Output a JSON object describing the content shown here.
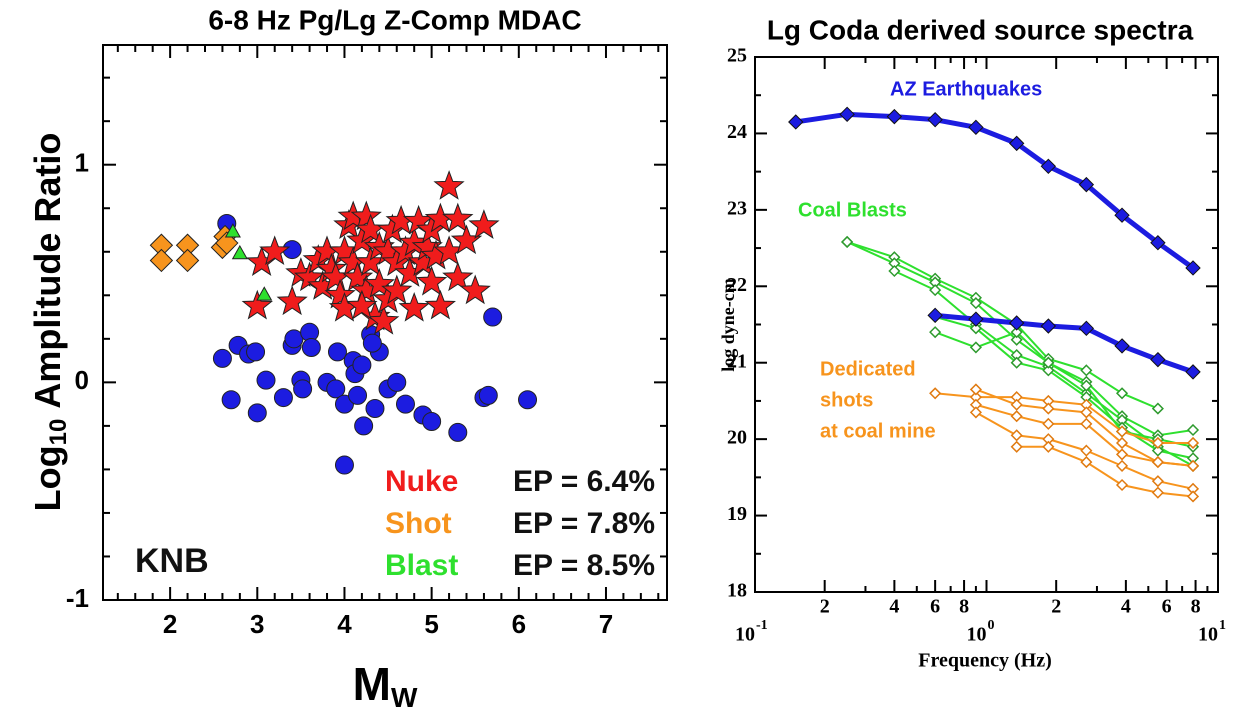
{
  "chart_data": [
    {
      "type": "scatter",
      "title": "6-8 Hz Pg/Lg Z-Comp MDAC",
      "ylabel": [
        "Log",
        "10",
        "Amplitude Ratio"
      ],
      "xlabel": [
        "M",
        "W"
      ],
      "xlim": [
        1.23,
        7.7
      ],
      "ylim": [
        -1,
        1.55
      ],
      "xticks": [
        2,
        3,
        4,
        5,
        6,
        7
      ],
      "yticks": [
        -1,
        0,
        1
      ],
      "xminor": [
        1.4,
        1.6,
        1.8,
        2.2,
        2.4,
        2.6,
        2.8,
        3.2,
        3.4,
        3.6,
        3.8,
        4.2,
        4.4,
        4.6,
        4.8,
        5.2,
        5.4,
        5.6,
        5.8,
        6.2,
        6.4,
        6.6,
        6.8,
        7.2,
        7.4,
        7.6
      ],
      "yminor": [
        -0.8,
        -0.6,
        -0.4,
        -0.2,
        0.2,
        0.4,
        0.6,
        0.8,
        1.2,
        1.4
      ],
      "legend": "lower right",
      "annotations": [
        {
          "text": "KNB",
          "color": "#111111"
        }
      ],
      "series": [
        {
          "color": "#1c1ce0",
          "marker": "circle",
          "x": [
            2.65,
            3.4,
            2.6,
            2.7,
            2.78,
            2.9,
            2.98,
            3.0,
            3.1,
            3.3,
            3.4,
            3.42,
            3.5,
            3.52,
            3.6,
            3.62,
            3.8,
            3.9,
            3.92,
            4.0,
            4.0,
            4.1,
            4.12,
            4.15,
            4.2,
            4.22,
            4.3,
            4.35,
            4.4,
            4.5,
            4.6,
            4.7,
            4.9,
            5.0,
            5.3,
            5.6,
            5.65,
            5.7,
            6.1,
            4.32
          ],
          "values": [
            0.73,
            0.61,
            0.11,
            -0.08,
            0.17,
            0.13,
            0.14,
            -0.14,
            0.01,
            -0.07,
            0.17,
            0.2,
            0.01,
            -0.03,
            0.23,
            0.16,
            0.0,
            -0.03,
            0.14,
            -0.1,
            -0.38,
            0.1,
            0.04,
            -0.06,
            0.08,
            -0.2,
            0.22,
            -0.12,
            0.14,
            -0.03,
            0.0,
            -0.1,
            -0.15,
            -0.18,
            -0.23,
            -0.07,
            -0.06,
            0.3,
            -0.08,
            0.18
          ]
        },
        {
          "name": "Nuke",
          "ep": "EP = 6.4%",
          "color": "#f01c1c",
          "marker": "star",
          "x": [
            3.0,
            3.05,
            3.2,
            3.4,
            3.5,
            3.6,
            3.7,
            3.75,
            3.8,
            3.85,
            3.9,
            3.95,
            4.0,
            4.0,
            4.05,
            4.1,
            4.1,
            4.15,
            4.2,
            4.25,
            4.25,
            4.3,
            4.3,
            4.35,
            4.4,
            4.4,
            4.45,
            4.5,
            4.5,
            4.55,
            4.6,
            4.6,
            4.65,
            4.7,
            4.75,
            4.8,
            4.8,
            4.85,
            4.9,
            4.95,
            5.0,
            5.0,
            5.05,
            5.1,
            5.2,
            5.2,
            5.3,
            5.3,
            5.4,
            5.5,
            5.6,
            5.1,
            4.2
          ],
          "values": [
            0.35,
            0.55,
            0.6,
            0.37,
            0.5,
            0.48,
            0.56,
            0.44,
            0.6,
            0.52,
            0.48,
            0.4,
            0.34,
            0.6,
            0.72,
            0.76,
            0.55,
            0.48,
            0.65,
            0.42,
            0.76,
            0.7,
            0.55,
            0.3,
            0.62,
            0.45,
            0.28,
            0.6,
            0.38,
            0.7,
            0.55,
            0.42,
            0.74,
            0.6,
            0.5,
            0.64,
            0.34,
            0.74,
            0.55,
            0.62,
            0.7,
            0.46,
            0.58,
            0.75,
            0.9,
            0.6,
            0.48,
            0.75,
            0.65,
            0.42,
            0.72,
            0.35,
            0.35
          ]
        },
        {
          "name": "Shot",
          "ep": "EP = 7.8%",
          "color": "#f7941d",
          "marker": "diamond",
          "x": [
            1.9,
            1.9,
            2.2,
            2.2,
            2.6,
            2.63,
            2.65
          ],
          "values": [
            0.63,
            0.56,
            0.63,
            0.56,
            0.62,
            0.67,
            0.64
          ]
        },
        {
          "name": "Blast",
          "ep": "EP = 8.5%",
          "color": "#2ee02e",
          "marker": "triangle",
          "x": [
            2.72,
            2.8,
            3.08
          ],
          "values": [
            0.69,
            0.59,
            0.4
          ]
        }
      ]
    },
    {
      "type": "line",
      "title": "Lg Coda derived source spectra",
      "ylabel": "log dyne-cm",
      "xlabel": "Frequency (Hz)",
      "xscale": "log",
      "xlim": [
        0.1,
        10
      ],
      "ylim": [
        18,
        25
      ],
      "xticks": [
        {
          "value": 0.1,
          "label": "10",
          "sup": "-1"
        },
        {
          "value": 0.2,
          "label": "2"
        },
        {
          "value": 0.4,
          "label": "4"
        },
        {
          "value": 0.6,
          "label": "6"
        },
        {
          "value": 0.8,
          "label": "8"
        },
        {
          "value": 1,
          "label": "10",
          "sup": "0"
        },
        2,
        4,
        6,
        8,
        {
          "value": 10,
          "label": "10",
          "sup": "1"
        }
      ],
      "yticks": [
        18,
        19,
        20,
        21,
        22,
        23,
        24,
        25
      ],
      "xminor": [
        0.3,
        0.5,
        0.7,
        0.9,
        3,
        5,
        7,
        9
      ],
      "yminor": [
        18.5,
        19.5,
        20.5,
        21.5,
        22.5,
        23.5,
        24.5
      ],
      "annotations": [
        {
          "text": "AZ Earthquakes",
          "color": "#1c1ce0"
        },
        {
          "text": "Coal Blasts",
          "color": "#2ee02e"
        },
        {
          "text": "Dedicated",
          "color": "#f7941d"
        },
        {
          "text": "shots",
          "color": "#f7941d"
        },
        {
          "text": "at coal mine",
          "color": "#f7941d"
        }
      ],
      "x": [
        0.15,
        0.25,
        0.4,
        0.6,
        0.9,
        1.35,
        1.85,
        2.7,
        3.85,
        5.5,
        7.8
      ],
      "series": [
        {
          "color": "#2e9a2e",
          "filled": false,
          "line_color": "#2ee02e",
          "line_width": 2,
          "values": [
            null,
            22.58,
            22.38,
            22.1,
            21.85,
            21.5,
            21.05,
            20.9,
            20.6,
            20.4,
            null
          ]
        },
        {
          "color": "#2e9a2e",
          "filled": false,
          "line_color": "#2ee02e",
          "line_width": 2,
          "values": [
            null,
            22.58,
            22.3,
            22.05,
            21.78,
            21.3,
            21.0,
            20.75,
            20.3,
            20.05,
            20.12
          ]
        },
        {
          "color": "#2e9a2e",
          "filled": false,
          "line_color": "#2ee02e",
          "line_width": 2,
          "values": [
            null,
            null,
            22.2,
            21.95,
            21.5,
            21.1,
            20.95,
            20.6,
            20.25,
            19.9,
            19.65
          ]
        },
        {
          "color": "#2e9a2e",
          "filled": false,
          "line_color": "#2ee02e",
          "line_width": 2,
          "values": [
            null,
            null,
            null,
            21.6,
            21.45,
            21.0,
            20.9,
            20.55,
            20.15,
            19.85,
            19.75
          ]
        },
        {
          "color": "#2e9a2e",
          "filled": false,
          "line_color": "#2ee02e",
          "line_width": 2,
          "values": [
            null,
            null,
            null,
            21.4,
            21.2,
            21.4,
            21.0,
            20.7,
            20.1,
            20.0,
            19.9
          ]
        },
        {
          "color": "#e07a10",
          "filled": false,
          "line_color": "#f7941d",
          "line_width": 2,
          "values": [
            null,
            null,
            null,
            20.6,
            20.55,
            20.55,
            20.5,
            20.45,
            20.1,
            19.95,
            19.95
          ]
        },
        {
          "color": "#e07a10",
          "filled": false,
          "line_color": "#f7941d",
          "line_width": 2,
          "values": [
            null,
            null,
            null,
            null,
            20.65,
            20.45,
            20.4,
            20.35,
            19.95,
            19.7,
            19.65
          ]
        },
        {
          "color": "#e07a10",
          "filled": false,
          "line_color": "#f7941d",
          "line_width": 2,
          "values": [
            null,
            null,
            null,
            null,
            20.45,
            20.3,
            20.2,
            20.2,
            19.8,
            19.7,
            19.65
          ]
        },
        {
          "color": "#e07a10",
          "filled": false,
          "line_color": "#f7941d",
          "line_width": 2,
          "values": [
            null,
            null,
            null,
            null,
            20.35,
            20.05,
            20.0,
            19.85,
            19.65,
            19.45,
            19.35
          ]
        },
        {
          "color": "#e07a10",
          "filled": false,
          "line_color": "#f7941d",
          "line_width": 2,
          "values": [
            null,
            null,
            null,
            null,
            null,
            19.9,
            19.9,
            19.7,
            19.4,
            19.3,
            19.25
          ]
        },
        {
          "color": "#1c1ce0",
          "filled": true,
          "line_color": "#1c1ce0",
          "line_width": 5,
          "values": [
            24.15,
            24.25,
            24.22,
            24.18,
            24.08,
            23.87,
            23.57,
            23.33,
            22.93,
            22.57,
            22.24
          ]
        },
        {
          "color": "#1c1ce0",
          "filled": true,
          "line_color": "#1c1ce0",
          "line_width": 5,
          "values": [
            null,
            null,
            null,
            21.62,
            21.57,
            21.52,
            21.48,
            21.45,
            21.22,
            21.04,
            20.88
          ]
        }
      ]
    }
  ]
}
